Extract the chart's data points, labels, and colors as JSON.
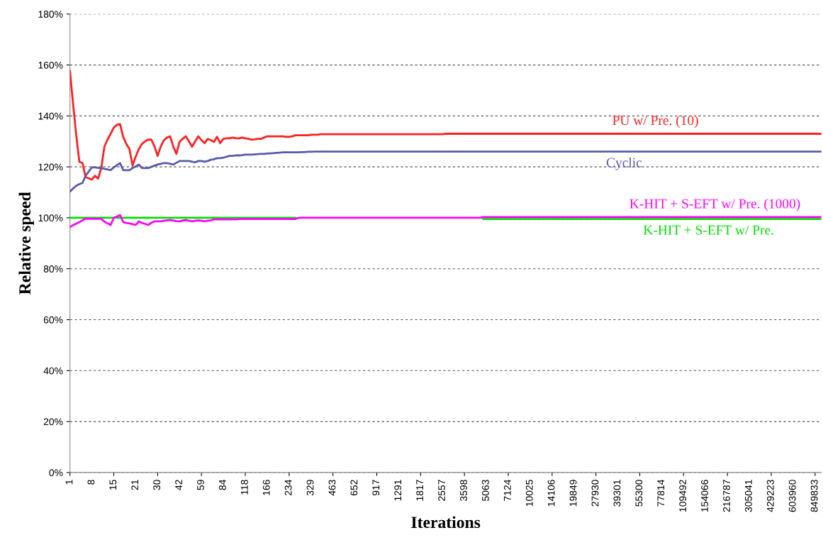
{
  "chart_data": {
    "type": "line",
    "xlabel": "Iterations",
    "ylabel": "Relative speed",
    "categories": [
      "1",
      null,
      null,
      null,
      null,
      null,
      null,
      "8",
      null,
      null,
      null,
      null,
      null,
      null,
      "15",
      null,
      null,
      null,
      null,
      null,
      null,
      "21",
      null,
      null,
      null,
      null,
      null,
      null,
      "30",
      null,
      null,
      null,
      null,
      null,
      null,
      "42",
      null,
      null,
      null,
      null,
      null,
      null,
      "59",
      null,
      null,
      null,
      null,
      null,
      null,
      "84",
      null,
      null,
      null,
      null,
      null,
      null,
      "118",
      null,
      null,
      null,
      null,
      null,
      null,
      "166",
      null,
      null,
      null,
      null,
      null,
      null,
      "234",
      null,
      null,
      null,
      null,
      null,
      null,
      "329",
      null,
      null,
      null,
      null,
      null,
      null,
      "463",
      null,
      null,
      null,
      null,
      null,
      null,
      "652",
      null,
      null,
      null,
      null,
      null,
      null,
      "917",
      null,
      null,
      null,
      null,
      null,
      null,
      "1291",
      null,
      null,
      null,
      null,
      null,
      null,
      "1817",
      null,
      null,
      null,
      null,
      null,
      null,
      "2557",
      null,
      null,
      null,
      null,
      null,
      null,
      "3598",
      null,
      null,
      null,
      null,
      null,
      null,
      "5063",
      null,
      null,
      null,
      null,
      null,
      null,
      "7124",
      null,
      null,
      null,
      null,
      null,
      null,
      "10025",
      null,
      null,
      null,
      null,
      null,
      null,
      "14106",
      null,
      null,
      null,
      null,
      null,
      null,
      "19849",
      null,
      null,
      null,
      null,
      null,
      null,
      "27930",
      null,
      null,
      null,
      null,
      null,
      null,
      "39301",
      null,
      null,
      null,
      null,
      null,
      null,
      "55300",
      null,
      null,
      null,
      null,
      null,
      null,
      "77814",
      null,
      null,
      null,
      null,
      null,
      null,
      "109492",
      null,
      null,
      null,
      null,
      null,
      null,
      "154066",
      null,
      null,
      null,
      null,
      null,
      null,
      "216787",
      null,
      null,
      null,
      null,
      null,
      null,
      "305041",
      null,
      null,
      null,
      null,
      null,
      null,
      "429223",
      null,
      null,
      null,
      null,
      null,
      null,
      "603960",
      null,
      null,
      null,
      null,
      null,
      null,
      "849833",
      null,
      null
    ],
    "ylim": [
      0,
      180
    ],
    "yticks": [
      {
        "value": 0,
        "label": "0%"
      },
      {
        "value": 20,
        "label": "20%"
      },
      {
        "value": 40,
        "label": "40%"
      },
      {
        "value": 60,
        "label": "60%"
      },
      {
        "value": 80,
        "label": "80%"
      },
      {
        "value": 100,
        "label": "100%"
      },
      {
        "value": 120,
        "label": "120%"
      },
      {
        "value": 140,
        "label": "140%"
      },
      {
        "value": 160,
        "label": "160%"
      },
      {
        "value": 180,
        "label": "180%"
      }
    ],
    "grid": "y",
    "legend": false,
    "marker": "none",
    "line_style": "solid",
    "series": [
      {
        "name": "PU w/ Pre. (10)",
        "color": "#ff2020",
        "values": [
          157.7,
          144.6,
          132.6,
          122,
          121.5,
          116,
          115.5,
          115,
          116.5,
          115.4,
          119.5,
          127.9,
          130.7,
          133,
          135.4,
          136.5,
          136.8,
          131.8,
          129,
          127,
          120.6,
          124,
          127,
          129,
          130,
          130.7,
          130.7,
          128,
          124.3,
          128,
          130.4,
          131.5,
          132,
          128,
          125.1,
          129.8,
          131,
          132,
          130,
          127.9,
          130,
          132,
          130.5,
          129.3,
          131,
          130.5,
          129.8,
          131.8,
          129.3,
          131,
          131.2,
          131.2,
          131.5,
          131.2,
          131.2,
          131.5,
          131.2,
          131,
          130.7,
          130.8,
          131,
          131,
          131.5,
          132,
          132,
          132,
          132,
          132,
          132,
          131.8,
          131.8,
          132,
          132.4,
          132.4,
          132.4,
          132.4,
          132.4,
          132.6,
          132.6,
          132.6,
          132.8,
          132.8,
          132.8,
          132.8,
          132.8,
          132.8,
          132.8,
          132.8,
          132.8,
          132.8,
          132.8,
          132.8,
          132.8,
          132.8,
          132.8,
          132.8,
          132.8,
          132.8,
          132.8,
          132.8,
          132.8,
          132.8,
          132.8,
          132.8,
          132.8,
          132.8,
          132.8,
          132.8,
          132.8,
          132.8,
          132.8,
          132.8,
          132.8,
          132.8,
          132.8,
          132.8,
          132.8,
          132.8,
          132.8,
          132.8,
          133,
          133,
          133,
          133,
          133,
          133,
          133,
          133,
          133,
          133,
          133,
          133,
          133,
          133,
          133,
          133,
          133,
          133,
          133,
          133,
          133,
          133,
          133,
          133,
          133,
          133,
          133,
          133,
          133,
          133,
          133,
          133,
          133,
          133,
          133,
          133,
          133,
          133,
          133,
          133,
          133,
          133,
          133,
          133,
          133,
          133,
          133,
          133,
          133,
          133,
          133,
          133,
          133,
          133,
          133,
          133,
          133,
          133,
          133,
          133,
          133,
          133,
          133,
          133,
          133,
          133,
          133,
          133,
          133,
          133,
          133,
          133,
          133,
          133,
          133,
          133,
          133,
          133,
          133,
          133,
          133,
          133,
          133,
          133,
          133,
          133,
          133,
          133,
          133,
          133,
          133,
          133,
          133,
          133,
          133,
          133,
          133,
          133,
          133,
          133,
          133,
          133,
          133,
          133,
          133,
          133,
          133,
          133,
          133,
          133,
          133,
          133,
          133,
          133,
          133,
          133,
          133,
          133,
          133,
          133,
          133
        ]
      },
      {
        "name": "Cyclic",
        "color": "#5a5aaa",
        "values": [
          110.3,
          111.5,
          112.6,
          113.2,
          113.7,
          116.5,
          118.2,
          119.8,
          119.8,
          119.6,
          119.5,
          119.2,
          119,
          118.7,
          119.8,
          120.6,
          121.5,
          118.7,
          118.7,
          118.7,
          119.5,
          120.2,
          120.9,
          119.5,
          119.5,
          119.5,
          120,
          120.5,
          120.9,
          121.2,
          121.5,
          121.5,
          121.2,
          120.9,
          121.6,
          122.3,
          122.3,
          122.3,
          122.3,
          122,
          121.8,
          122.3,
          122.3,
          122,
          122.3,
          122.8,
          123,
          123.4,
          123.4,
          123.6,
          124,
          124.3,
          124.3,
          124.5,
          124.5,
          124.6,
          124.8,
          124.8,
          124.8,
          124.9,
          125,
          125.1,
          125.1,
          125.2,
          125.3,
          125.4,
          125.5,
          125.6,
          125.7,
          125.7,
          125.7,
          125.7,
          125.7,
          125.7,
          125.8,
          125.8,
          125.9,
          125.9,
          126,
          126,
          126,
          126,
          126,
          126,
          126,
          126,
          126,
          126,
          126,
          126,
          126,
          126,
          126,
          126,
          126,
          126,
          126,
          126,
          126,
          126,
          126,
          126,
          126,
          126,
          126,
          126,
          126,
          126,
          126,
          126,
          126,
          126,
          126,
          126,
          126,
          126,
          126,
          126,
          126,
          126,
          126,
          126,
          126,
          126,
          126,
          126,
          126,
          126,
          126,
          126,
          126,
          126,
          126,
          126,
          126,
          126,
          126,
          126,
          126,
          126,
          126,
          126,
          126,
          126,
          126,
          126,
          126,
          126,
          126,
          126,
          126,
          126,
          126,
          126,
          126,
          126,
          126,
          126,
          126,
          126,
          126,
          126,
          126,
          126,
          126,
          126,
          126,
          126,
          126,
          126,
          126,
          126,
          126,
          126,
          126,
          126,
          126,
          126,
          126,
          126,
          126,
          126,
          126,
          126,
          126,
          126,
          126,
          126,
          126,
          126,
          126,
          126,
          126,
          126,
          126,
          126,
          126,
          126,
          126,
          126,
          126,
          126,
          126,
          126,
          126,
          126,
          126,
          126,
          126,
          126,
          126,
          126,
          126,
          126,
          126,
          126,
          126,
          126,
          126,
          126,
          126,
          126,
          126,
          126,
          126,
          126,
          126,
          126,
          126,
          126,
          126,
          126,
          126,
          126,
          126,
          126,
          126,
          126,
          126,
          126,
          126
        ]
      },
      {
        "name": "K-HIT + S-EFT w/ Pre.",
        "color": "#00e000",
        "values": [
          100,
          100,
          100,
          100,
          100,
          100,
          100,
          100,
          100,
          100,
          100,
          100,
          100,
          100,
          100,
          100,
          100,
          100,
          100,
          100,
          100,
          100,
          100,
          100,
          100,
          100,
          100,
          100,
          100,
          100,
          100,
          100,
          100,
          100,
          100,
          100,
          100,
          100,
          100,
          100,
          100,
          100,
          100,
          100,
          100,
          100,
          100,
          100,
          100,
          100,
          100,
          100,
          100,
          100,
          100,
          100,
          100,
          100,
          100,
          100,
          100,
          100,
          100,
          100,
          100,
          100,
          100,
          100,
          100,
          100,
          100,
          100,
          100,
          null,
          null,
          null,
          null,
          null,
          null,
          null,
          null,
          null,
          null,
          null,
          null,
          null,
          null,
          null,
          null,
          null,
          null,
          null,
          null,
          null,
          null,
          null,
          null,
          null,
          null,
          null,
          null,
          null,
          null,
          null,
          null,
          null,
          null,
          null,
          null,
          null,
          null,
          null,
          null,
          null,
          null,
          null,
          null,
          null,
          null,
          null,
          null,
          null,
          null,
          null,
          null,
          null,
          null,
          null,
          null,
          null,
          null,
          null,
          99.5,
          99.5,
          99.5,
          99.5,
          99.5,
          99.5,
          99.5,
          99.5,
          99.5,
          99.5,
          99.5,
          99.5,
          99.5,
          99.5,
          99.5,
          99.5,
          99.5,
          99.5,
          99.5,
          99.5,
          99.5,
          99.5,
          99.5,
          99.5,
          99.5,
          99.5,
          99.5,
          99.5,
          99.5,
          99.5,
          99.5,
          99.5,
          99.5,
          99.5,
          99.5,
          99.5,
          99.5,
          99.5,
          99.5,
          99.5,
          99.5,
          99.5,
          99.5,
          99.5,
          99.5,
          99.5,
          99.5,
          99.5,
          99.5,
          99.5,
          99.5,
          99.5,
          99.5,
          99.5,
          99.5,
          99.5,
          99.5,
          99.5,
          99.5,
          99.5,
          99.5,
          99.5,
          99.5,
          99.5,
          99.5,
          99.5,
          99.5,
          99.5,
          99.5,
          99.5,
          99.5,
          99.5,
          99.5,
          99.5,
          99.5,
          99.5,
          99.5,
          99.5,
          99.5,
          99.5,
          99.5,
          99.5,
          99.5,
          99.5,
          99.5,
          99.5,
          99.5,
          99.5,
          99.5,
          99.5,
          99.5,
          99.5,
          99.5,
          99.5,
          99.5,
          99.5,
          99.5,
          99.5,
          99.5,
          99.5,
          99.5,
          99.5,
          99.5,
          99.5,
          99.5,
          99.5,
          99.5,
          99.5,
          99.5
        ]
      },
      {
        "name": "K-HIT + S-EFT w/ Pre. (1000)",
        "color": "#ff00ff",
        "values": [
          96.4,
          97.1,
          97.7,
          98.3,
          99,
          99.7,
          99.6,
          99.6,
          99.6,
          99.6,
          99.6,
          98.5,
          97.8,
          97.2,
          100,
          100.5,
          101.1,
          98.3,
          98,
          97.8,
          97.5,
          97.2,
          98.6,
          98,
          97.6,
          97.2,
          98,
          98.6,
          98.6,
          98.6,
          98.8,
          99,
          99.2,
          98.9,
          98.7,
          98.6,
          98.9,
          99.2,
          98.8,
          98.6,
          98.8,
          99,
          98.8,
          98.6,
          98.8,
          99,
          99.4,
          99.4,
          99.4,
          99.4,
          99.4,
          99.4,
          99.4,
          99.4,
          99.5,
          99.5,
          99.5,
          99.5,
          99.5,
          99.5,
          99.5,
          99.5,
          99.5,
          99.5,
          99.5,
          99.5,
          99.5,
          99.5,
          99.5,
          99.5,
          99.5,
          99.5,
          99.5,
          100,
          100,
          100,
          100,
          100,
          100,
          100,
          100,
          100,
          100,
          100,
          100,
          100,
          100,
          100,
          100,
          100,
          100,
          100,
          100,
          100,
          100,
          100,
          100,
          100,
          100,
          100,
          100,
          100,
          100,
          100,
          100,
          100,
          100,
          100,
          100,
          100,
          100,
          100,
          100,
          100,
          100,
          100,
          100,
          100,
          100,
          100,
          100,
          100,
          100,
          100,
          100,
          100,
          100,
          100,
          100,
          100,
          100,
          100,
          100.3,
          100.3,
          100.3,
          100.3,
          100.3,
          100.3,
          100.3,
          100.3,
          100.3,
          100.3,
          100.3,
          100.3,
          100.3,
          100.3,
          100.3,
          100.3,
          100.3,
          100.3,
          100.3,
          100.3,
          100.3,
          100.3,
          100.3,
          100.3,
          100.3,
          100.3,
          100.3,
          100.3,
          100.3,
          100.3,
          100.3,
          100.3,
          100.3,
          100.3,
          100.3,
          100.3,
          100.3,
          100.3,
          100.3,
          100.3,
          100.3,
          100.3,
          100.3,
          100.3,
          100.3,
          100.3,
          100.3,
          100.3,
          100.3,
          100.3,
          100.3,
          100.3,
          100.3,
          100.3,
          100.3,
          100.3,
          100.3,
          100.3,
          100.3,
          100.3,
          100.3,
          100.3,
          100.3,
          100.3,
          100.3,
          100.3,
          100.3,
          100.3,
          100.3,
          100.3,
          100.3,
          100.3,
          100.3,
          100.3,
          100.3,
          100.3,
          100.3,
          100.3,
          100.3,
          100.3,
          100.3,
          100.3,
          100.3,
          100.3,
          100.3,
          100.3,
          100.3,
          100.3,
          100.3,
          100.3,
          100.3,
          100.3,
          100.3,
          100.3,
          100.3,
          100.3,
          100.3,
          100.3,
          100.3,
          100.3,
          100.3,
          100.3,
          100.3,
          100.3,
          100.3,
          100.3,
          100.3,
          100.3,
          100.3
        ]
      }
    ]
  }
}
